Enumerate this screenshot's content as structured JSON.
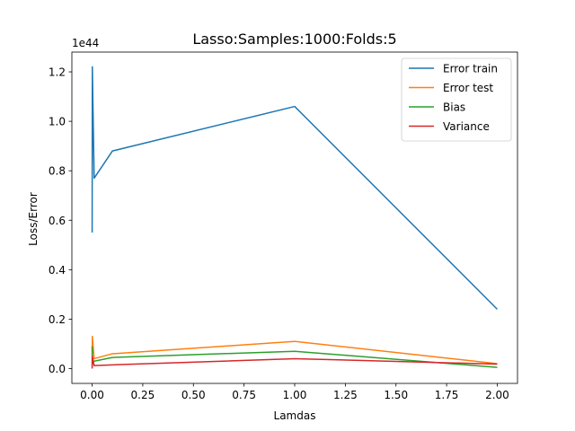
{
  "chart_data": {
    "type": "line",
    "title": "Lasso:Samples:1000:Folds:5",
    "xlabel": "Lamdas",
    "ylabel": "Loss/Error",
    "y_offset_label": "1e44",
    "xlim": [
      -0.1,
      2.1
    ],
    "ylim": [
      -0.06,
      1.28
    ],
    "x_ticks": [
      0.0,
      0.25,
      0.5,
      0.75,
      1.0,
      1.25,
      1.5,
      1.75,
      2.0
    ],
    "x_tick_labels": [
      "0.00",
      "0.25",
      "0.50",
      "0.75",
      "1.00",
      "1.25",
      "1.50",
      "1.75",
      "2.00"
    ],
    "y_ticks": [
      0.0,
      0.2,
      0.4,
      0.6,
      0.8,
      1.0,
      1.2
    ],
    "y_tick_labels": [
      "0.0",
      "0.2",
      "0.4",
      "0.6",
      "0.8",
      "1.0",
      "1.2"
    ],
    "grid": false,
    "legend_position": "top-right",
    "x": [
      0.0001,
      0.001,
      0.01,
      0.1,
      1.0,
      2.0
    ],
    "series": [
      {
        "name": "Error train",
        "color": "#1f77b4",
        "values": [
          0.55,
          1.22,
          0.77,
          0.88,
          1.06,
          0.24
        ]
      },
      {
        "name": "Error test",
        "color": "#ff7f0e",
        "values": [
          0.01,
          0.13,
          0.04,
          0.06,
          0.11,
          0.02
        ]
      },
      {
        "name": "Bias",
        "color": "#2ca02c",
        "values": [
          0.09,
          0.02,
          0.03,
          0.045,
          0.07,
          0.005
        ]
      },
      {
        "name": "Variance",
        "color": "#d62728",
        "values": [
          0.0,
          0.05,
          0.012,
          0.015,
          0.04,
          0.018
        ]
      }
    ]
  }
}
